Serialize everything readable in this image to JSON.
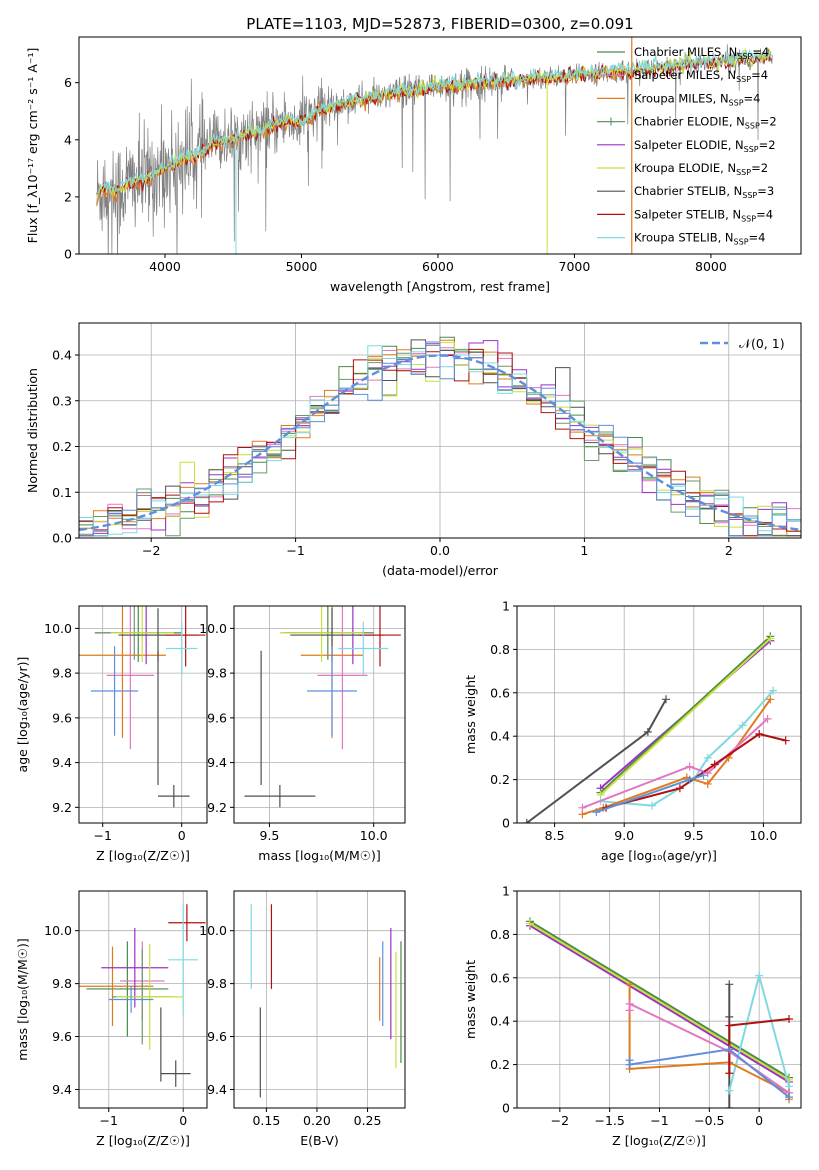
{
  "figure_title": "PLATE=1103, MJD=52873, FIBERID=0300, z=0.091",
  "colors": {
    "chabrier_miles": "#4a8a4a",
    "salpeter_miles": "#e377c2",
    "kroupa_miles": "#e07a1f",
    "chabrier_elodie": "#6a9a6a",
    "salpeter_elodie": "#9b30c8",
    "kroupa_elodie": "#c8e03a",
    "chabrier_stelib": "#505050",
    "salpeter_stelib": "#b01010",
    "kroupa_stelib": "#7fd9e0",
    "blue_model": "#5f8fdc",
    "data_gray": "#808080",
    "normal_curve": "#5f8fdc",
    "grid": "#b0b0b0"
  },
  "chart_data": [
    {
      "id": "spectrum",
      "type": "line",
      "xlabel": "wavelength [Angstrom, rest frame]",
      "ylabel": "Flux [f_λ10⁻¹⁷ erg cm⁻² s⁻¹ A⁻¹]",
      "xlim": [
        3370,
        8660
      ],
      "ylim": [
        0,
        7.6
      ],
      "xticks": [
        4000,
        5000,
        6000,
        7000,
        8000
      ],
      "yticks": [
        0,
        2,
        4,
        6
      ],
      "grid": false,
      "legend_position": "top-right",
      "legend": [
        {
          "label": "Chabrier MILES, N",
          "sub": "SSP",
          "tail": "=4",
          "color_key": "chabrier_miles",
          "marker": "none"
        },
        {
          "label": "Salpeter MILES, N",
          "sub": "SSP",
          "tail": "=4",
          "color_key": "salpeter_miles",
          "marker": "none"
        },
        {
          "label": "Kroupa MILES, N",
          "sub": "SSP",
          "tail": "=4",
          "color_key": "kroupa_miles",
          "marker": "none"
        },
        {
          "label": "Chabrier ELODIE, N",
          "sub": "SSP",
          "tail": "=2",
          "color_key": "chabrier_elodie",
          "marker": "plus"
        },
        {
          "label": "Salpeter ELODIE, N",
          "sub": "SSP",
          "tail": "=2",
          "color_key": "salpeter_elodie",
          "marker": "none"
        },
        {
          "label": "Kroupa ELODIE, N",
          "sub": "SSP",
          "tail": "=2",
          "color_key": "kroupa_elodie",
          "marker": "none"
        },
        {
          "label": "Chabrier STELIB, N",
          "sub": "SSP",
          "tail": "=3",
          "color_key": "chabrier_stelib",
          "marker": "none"
        },
        {
          "label": "Salpeter STELIB, N",
          "sub": "SSP",
          "tail": "=4",
          "color_key": "salpeter_stelib",
          "marker": "none"
        },
        {
          "label": "Kroupa STELIB, N",
          "sub": "SSP",
          "tail": "=4",
          "color_key": "kroupa_stelib",
          "marker": "none"
        }
      ],
      "data_range": [
        3500,
        8450
      ],
      "model_continuum": {
        "x": [
          3500,
          3550,
          3650,
          3750,
          3850,
          3950,
          4050,
          4150,
          4250,
          4350,
          4450,
          4600,
          4750,
          4900,
          5000,
          5100,
          5250,
          5400,
          5550,
          5700,
          5850,
          6000,
          6200,
          6400,
          6600,
          6800,
          7000,
          7200,
          7400,
          7600,
          7800,
          8000,
          8200,
          8400
        ],
        "y": [
          2.0,
          2.3,
          2.2,
          2.5,
          2.6,
          2.9,
          3.1,
          3.4,
          3.5,
          3.9,
          4.0,
          4.2,
          4.4,
          4.7,
          4.6,
          4.95,
          5.2,
          5.4,
          5.5,
          5.65,
          5.75,
          5.9,
          5.95,
          6.05,
          6.1,
          6.2,
          6.25,
          6.35,
          6.4,
          6.5,
          6.6,
          6.7,
          6.8,
          6.9
        ]
      }
    },
    {
      "id": "residual_hist",
      "type": "histogram",
      "xlabel": "(data-model)/error",
      "ylabel": "Normed distribution",
      "xlim": [
        -2.5,
        2.5
      ],
      "ylim": [
        0,
        0.47
      ],
      "xticks": [
        -2,
        -1,
        0,
        1,
        2
      ],
      "yticks": [
        0.0,
        0.1,
        0.2,
        0.3,
        0.4
      ],
      "grid": true,
      "legend_position": "top-right",
      "normal_label": "𝒩(0, 1)",
      "bin_width": 0.1,
      "bin_start": -2.5
    },
    {
      "id": "age_vs_Z",
      "type": "errorbar",
      "xlabel": "Z [log₁₀(Z/Z☉)]",
      "ylabel": "age  [log₁₀(age/yr)]",
      "xlim": [
        -1.3,
        0.32
      ],
      "ylim": [
        9.13,
        10.1
      ],
      "xticks": [
        -1,
        0
      ],
      "yticks": [
        9.2,
        9.4,
        9.6,
        9.8,
        10.0
      ],
      "grid": true,
      "points": [
        {
          "color_key": "chabrier_miles",
          "x": -0.55,
          "xerr": 0.55,
          "y": 9.98,
          "yerr": 0.13
        },
        {
          "color_key": "salpeter_miles",
          "x": -0.65,
          "xerr": 0.3,
          "y": 9.79,
          "yerr": 0.33
        },
        {
          "color_key": "kroupa_miles",
          "x": -0.75,
          "xerr": 0.55,
          "y": 9.88,
          "yerr": 0.37
        },
        {
          "color_key": "chabrier_elodie",
          "x": -0.6,
          "xerr": 0.45,
          "y": 9.98,
          "yerr": 0.12
        },
        {
          "color_key": "salpeter_elodie",
          "x": -0.45,
          "xerr": 0.3,
          "y": 9.97,
          "yerr": 0.13
        },
        {
          "color_key": "kroupa_elodie",
          "x": -0.5,
          "xerr": 0.4,
          "y": 9.98,
          "yerr": 0.13
        },
        {
          "color_key": "chabrier_stelib",
          "x": -0.3,
          "xerr": 0.5,
          "y": 9.97,
          "yerr": 0.12
        },
        {
          "color_key": "salpeter_stelib",
          "x": 0.05,
          "xerr": 0.25,
          "y": 9.97,
          "yerr": 0.14
        },
        {
          "color_key": "kroupa_stelib",
          "x": 0.0,
          "xerr": 0.2,
          "y": 9.91,
          "yerr": 0.12
        },
        {
          "color_key": "blue_model",
          "x": -0.85,
          "xerr": 0.3,
          "y": 9.72,
          "yerr": 0.2
        },
        {
          "color_key": "chabrier_stelib",
          "x": -0.3,
          "xerr": 0.0,
          "y": 9.6,
          "yerr": 0.3
        },
        {
          "color_key": "chabrier_stelib",
          "x": -0.1,
          "xerr": 0.2,
          "y": 9.25,
          "yerr": 0.05
        }
      ]
    },
    {
      "id": "age_vs_mass",
      "type": "errorbar",
      "xlabel": "mass [log₁₀(M/M☉)]",
      "ylabel": "",
      "xlim": [
        9.33,
        10.15
      ],
      "ylim": [
        9.13,
        10.1
      ],
      "xticks": [
        9.5,
        10.0
      ],
      "yticks": [
        9.2,
        9.4,
        9.6,
        9.8,
        10.0
      ],
      "grid": true,
      "points": [
        {
          "color_key": "chabrier_miles",
          "x": 9.78,
          "xerr": 0.22,
          "y": 9.98,
          "yerr": 0.12
        },
        {
          "color_key": "salpeter_miles",
          "x": 9.85,
          "xerr": 0.12,
          "y": 9.79,
          "yerr": 0.33
        },
        {
          "color_key": "kroupa_miles",
          "x": 9.8,
          "xerr": 0.15,
          "y": 9.88,
          "yerr": 0.37
        },
        {
          "color_key": "chabrier_elodie",
          "x": 9.78,
          "xerr": 0.2,
          "y": 9.98,
          "yerr": 0.12
        },
        {
          "color_key": "salpeter_elodie",
          "x": 9.9,
          "xerr": 0.15,
          "y": 9.97,
          "yerr": 0.13
        },
        {
          "color_key": "kroupa_elodie",
          "x": 9.75,
          "xerr": 0.2,
          "y": 9.98,
          "yerr": 0.13
        },
        {
          "color_key": "chabrier_stelib",
          "x": 9.8,
          "xerr": 0.2,
          "y": 9.97,
          "yerr": 0.12
        },
        {
          "color_key": "salpeter_stelib",
          "x": 10.03,
          "xerr": 0.1,
          "y": 9.97,
          "yerr": 0.14
        },
        {
          "color_key": "kroupa_stelib",
          "x": 9.95,
          "xerr": 0.12,
          "y": 9.91,
          "yerr": 0.12
        },
        {
          "color_key": "blue_model",
          "x": 9.8,
          "xerr": 0.12,
          "y": 9.72,
          "yerr": 0.2
        },
        {
          "color_key": "chabrier_stelib",
          "x": 9.46,
          "xerr": 0.0,
          "y": 9.6,
          "yerr": 0.3
        },
        {
          "color_key": "chabrier_stelib",
          "x": 9.55,
          "xerr": 0.17,
          "y": 9.25,
          "yerr": 0.05
        }
      ]
    },
    {
      "id": "weight_vs_age",
      "type": "line",
      "xlabel": "age  [log₁₀(age/yr)]",
      "ylabel": "mass weight",
      "xlim": [
        8.23,
        10.27
      ],
      "ylim": [
        0,
        1
      ],
      "xticks": [
        8.5,
        9.0,
        9.5,
        10.0
      ],
      "yticks": [
        0.0,
        0.2,
        0.4,
        0.6,
        0.8,
        1.0
      ],
      "grid": true,
      "series": [
        {
          "color_key": "salpeter_elodie",
          "x": [
            8.83,
            10.05
          ],
          "y": [
            0.16,
            0.84
          ]
        },
        {
          "color_key": "chabrier_miles",
          "x": [
            8.83,
            10.05
          ],
          "y": [
            0.14,
            0.86
          ]
        },
        {
          "color_key": "kroupa_elodie",
          "x": [
            8.83,
            10.05
          ],
          "y": [
            0.13,
            0.85
          ]
        },
        {
          "color_key": "chabrier_stelib",
          "x": [
            8.3,
            9.17,
            9.3
          ],
          "y": [
            0.0,
            0.42,
            0.57
          ]
        },
        {
          "color_key": "kroupa_stelib",
          "x": [
            8.83,
            9.2,
            9.5,
            9.6,
            9.85,
            10.07
          ],
          "y": [
            0.1,
            0.08,
            0.2,
            0.3,
            0.45,
            0.61
          ]
        },
        {
          "color_key": "kroupa_miles",
          "x": [
            8.7,
            8.85,
            9.45,
            9.6,
            9.75,
            10.05
          ],
          "y": [
            0.04,
            0.07,
            0.21,
            0.18,
            0.3,
            0.57
          ]
        },
        {
          "color_key": "salpeter_miles",
          "x": [
            8.7,
            9.47,
            9.6,
            10.03
          ],
          "y": [
            0.07,
            0.26,
            0.23,
            0.48
          ]
        },
        {
          "color_key": "salpeter_stelib",
          "x": [
            8.87,
            9.4,
            9.65,
            9.97,
            10.16
          ],
          "y": [
            0.07,
            0.16,
            0.27,
            0.41,
            0.38
          ]
        },
        {
          "color_key": "blue_model",
          "x": [
            8.8,
            9.47,
            9.57
          ],
          "y": [
            0.05,
            0.2,
            0.22
          ]
        }
      ]
    },
    {
      "id": "mass_vs_Z",
      "type": "errorbar",
      "xlabel": "Z [log₁₀(Z/Z☉)]",
      "ylabel": "mass [log₁₀(M/M☉)]",
      "xlim": [
        -1.4,
        0.32
      ],
      "ylim": [
        9.33,
        10.15
      ],
      "xticks": [
        -1,
        0
      ],
      "yticks": [
        9.4,
        9.6,
        9.8,
        10.0
      ],
      "grid": true,
      "points": [
        {
          "color_key": "chabrier_miles",
          "x": -0.75,
          "xerr": 0.55,
          "y": 9.78,
          "yerr": 0.18
        },
        {
          "color_key": "salpeter_miles",
          "x": -0.55,
          "xerr": 0.3,
          "y": 9.81,
          "yerr": 0.15
        },
        {
          "color_key": "kroupa_miles",
          "x": -0.95,
          "xerr": 0.55,
          "y": 9.79,
          "yerr": 0.15
        },
        {
          "color_key": "chabrier_elodie",
          "x": -0.55,
          "xerr": 0.4,
          "y": 9.75,
          "yerr": 0.18
        },
        {
          "color_key": "salpeter_elodie",
          "x": -0.65,
          "xerr": 0.45,
          "y": 9.86,
          "yerr": 0.15
        },
        {
          "color_key": "kroupa_elodie",
          "x": -0.45,
          "xerr": 0.45,
          "y": 9.75,
          "yerr": 0.2
        },
        {
          "color_key": "chabrier_stelib",
          "x": -0.1,
          "xerr": 0.2,
          "y": 9.46,
          "yerr": 0.05
        },
        {
          "color_key": "salpeter_stelib",
          "x": 0.05,
          "xerr": 0.25,
          "y": 10.03,
          "yerr": 0.07
        },
        {
          "color_key": "kroupa_stelib",
          "x": 0.0,
          "xerr": 0.2,
          "y": 9.89,
          "yerr": 0.21
        },
        {
          "color_key": "blue_model",
          "x": -0.7,
          "xerr": 0.3,
          "y": 9.74,
          "yerr": 0.05
        },
        {
          "color_key": "chabrier_stelib",
          "x": -0.3,
          "xerr": 0.0,
          "y": 9.57,
          "yerr": 0.14
        }
      ]
    },
    {
      "id": "mass_vs_ebv",
      "type": "errorbar",
      "xlabel": "E(B-V)",
      "ylabel": "",
      "xlim": [
        0.118,
        0.287
      ],
      "ylim": [
        9.33,
        10.15
      ],
      "xticks": [
        0.15,
        0.2,
        0.25
      ],
      "yticks": [
        9.4,
        9.6,
        9.8,
        10.0
      ],
      "grid": true,
      "points": [
        {
          "color_key": "kroupa_stelib",
          "x": 0.135,
          "xerr": 0.0,
          "y": 9.94,
          "yerr": 0.16
        },
        {
          "color_key": "chabrier_stelib",
          "x": 0.144,
          "xerr": 0.0,
          "y": 9.54,
          "yerr": 0.17
        },
        {
          "color_key": "salpeter_stelib",
          "x": 0.155,
          "xerr": 0.0,
          "y": 9.94,
          "yerr": 0.16
        },
        {
          "color_key": "kroupa_miles",
          "x": 0.262,
          "xerr": 0.0,
          "y": 9.78,
          "yerr": 0.12
        },
        {
          "color_key": "blue_model",
          "x": 0.265,
          "xerr": 0.0,
          "y": 9.8,
          "yerr": 0.16
        },
        {
          "color_key": "salpeter_elodie",
          "x": 0.273,
          "xerr": 0.0,
          "y": 9.8,
          "yerr": 0.21
        },
        {
          "color_key": "kroupa_elodie",
          "x": 0.278,
          "xerr": 0.0,
          "y": 9.7,
          "yerr": 0.22
        },
        {
          "color_key": "chabrier_miles",
          "x": 0.283,
          "xerr": 0.0,
          "y": 9.73,
          "yerr": 0.23
        }
      ]
    },
    {
      "id": "weight_vs_Z",
      "type": "line",
      "xlabel": "Z [log₁₀(Z/Z☉)]",
      "ylabel": "mass weight",
      "xlim": [
        -2.43,
        0.42
      ],
      "ylim": [
        0,
        1
      ],
      "xticks": [
        -2.0,
        -1.5,
        -1.0,
        -0.5,
        0.0
      ],
      "yticks": [
        0.0,
        0.2,
        0.4,
        0.6,
        0.8,
        1.0
      ],
      "grid": true,
      "series": [
        {
          "color_key": "salpeter_elodie",
          "x": [
            -2.3,
            0.3
          ],
          "y": [
            0.84,
            0.12
          ]
        },
        {
          "color_key": "chabrier_miles",
          "x": [
            -2.3,
            0.3
          ],
          "y": [
            0.86,
            0.14
          ]
        },
        {
          "color_key": "kroupa_elodie",
          "x": [
            -2.3,
            0.3
          ],
          "y": [
            0.85,
            0.13
          ]
        },
        {
          "color_key": "chabrier_stelib",
          "x": [
            -0.3,
            -0.3,
            -0.3
          ],
          "y": [
            0.0,
            0.42,
            0.57
          ]
        },
        {
          "color_key": "kroupa_stelib",
          "x": [
            -0.3,
            0.0,
            0.3,
            0.3
          ],
          "y": [
            0.08,
            0.61,
            0.1,
            0.05
          ]
        },
        {
          "color_key": "kroupa_miles",
          "x": [
            -1.3,
            -1.3,
            -0.3,
            0.3,
            0.3
          ],
          "y": [
            0.57,
            0.18,
            0.21,
            0.07,
            0.04
          ]
        },
        {
          "color_key": "salpeter_miles",
          "x": [
            -1.3,
            -1.3,
            -0.3,
            0.3
          ],
          "y": [
            0.45,
            0.48,
            0.26,
            0.07
          ]
        },
        {
          "color_key": "salpeter_stelib",
          "x": [
            -0.3,
            -0.3,
            0.3
          ],
          "y": [
            0.16,
            0.38,
            0.41
          ]
        },
        {
          "color_key": "blue_model",
          "x": [
            -1.3,
            -1.3,
            -0.3,
            0.3
          ],
          "y": [
            0.22,
            0.2,
            0.27,
            0.05
          ]
        }
      ]
    }
  ]
}
